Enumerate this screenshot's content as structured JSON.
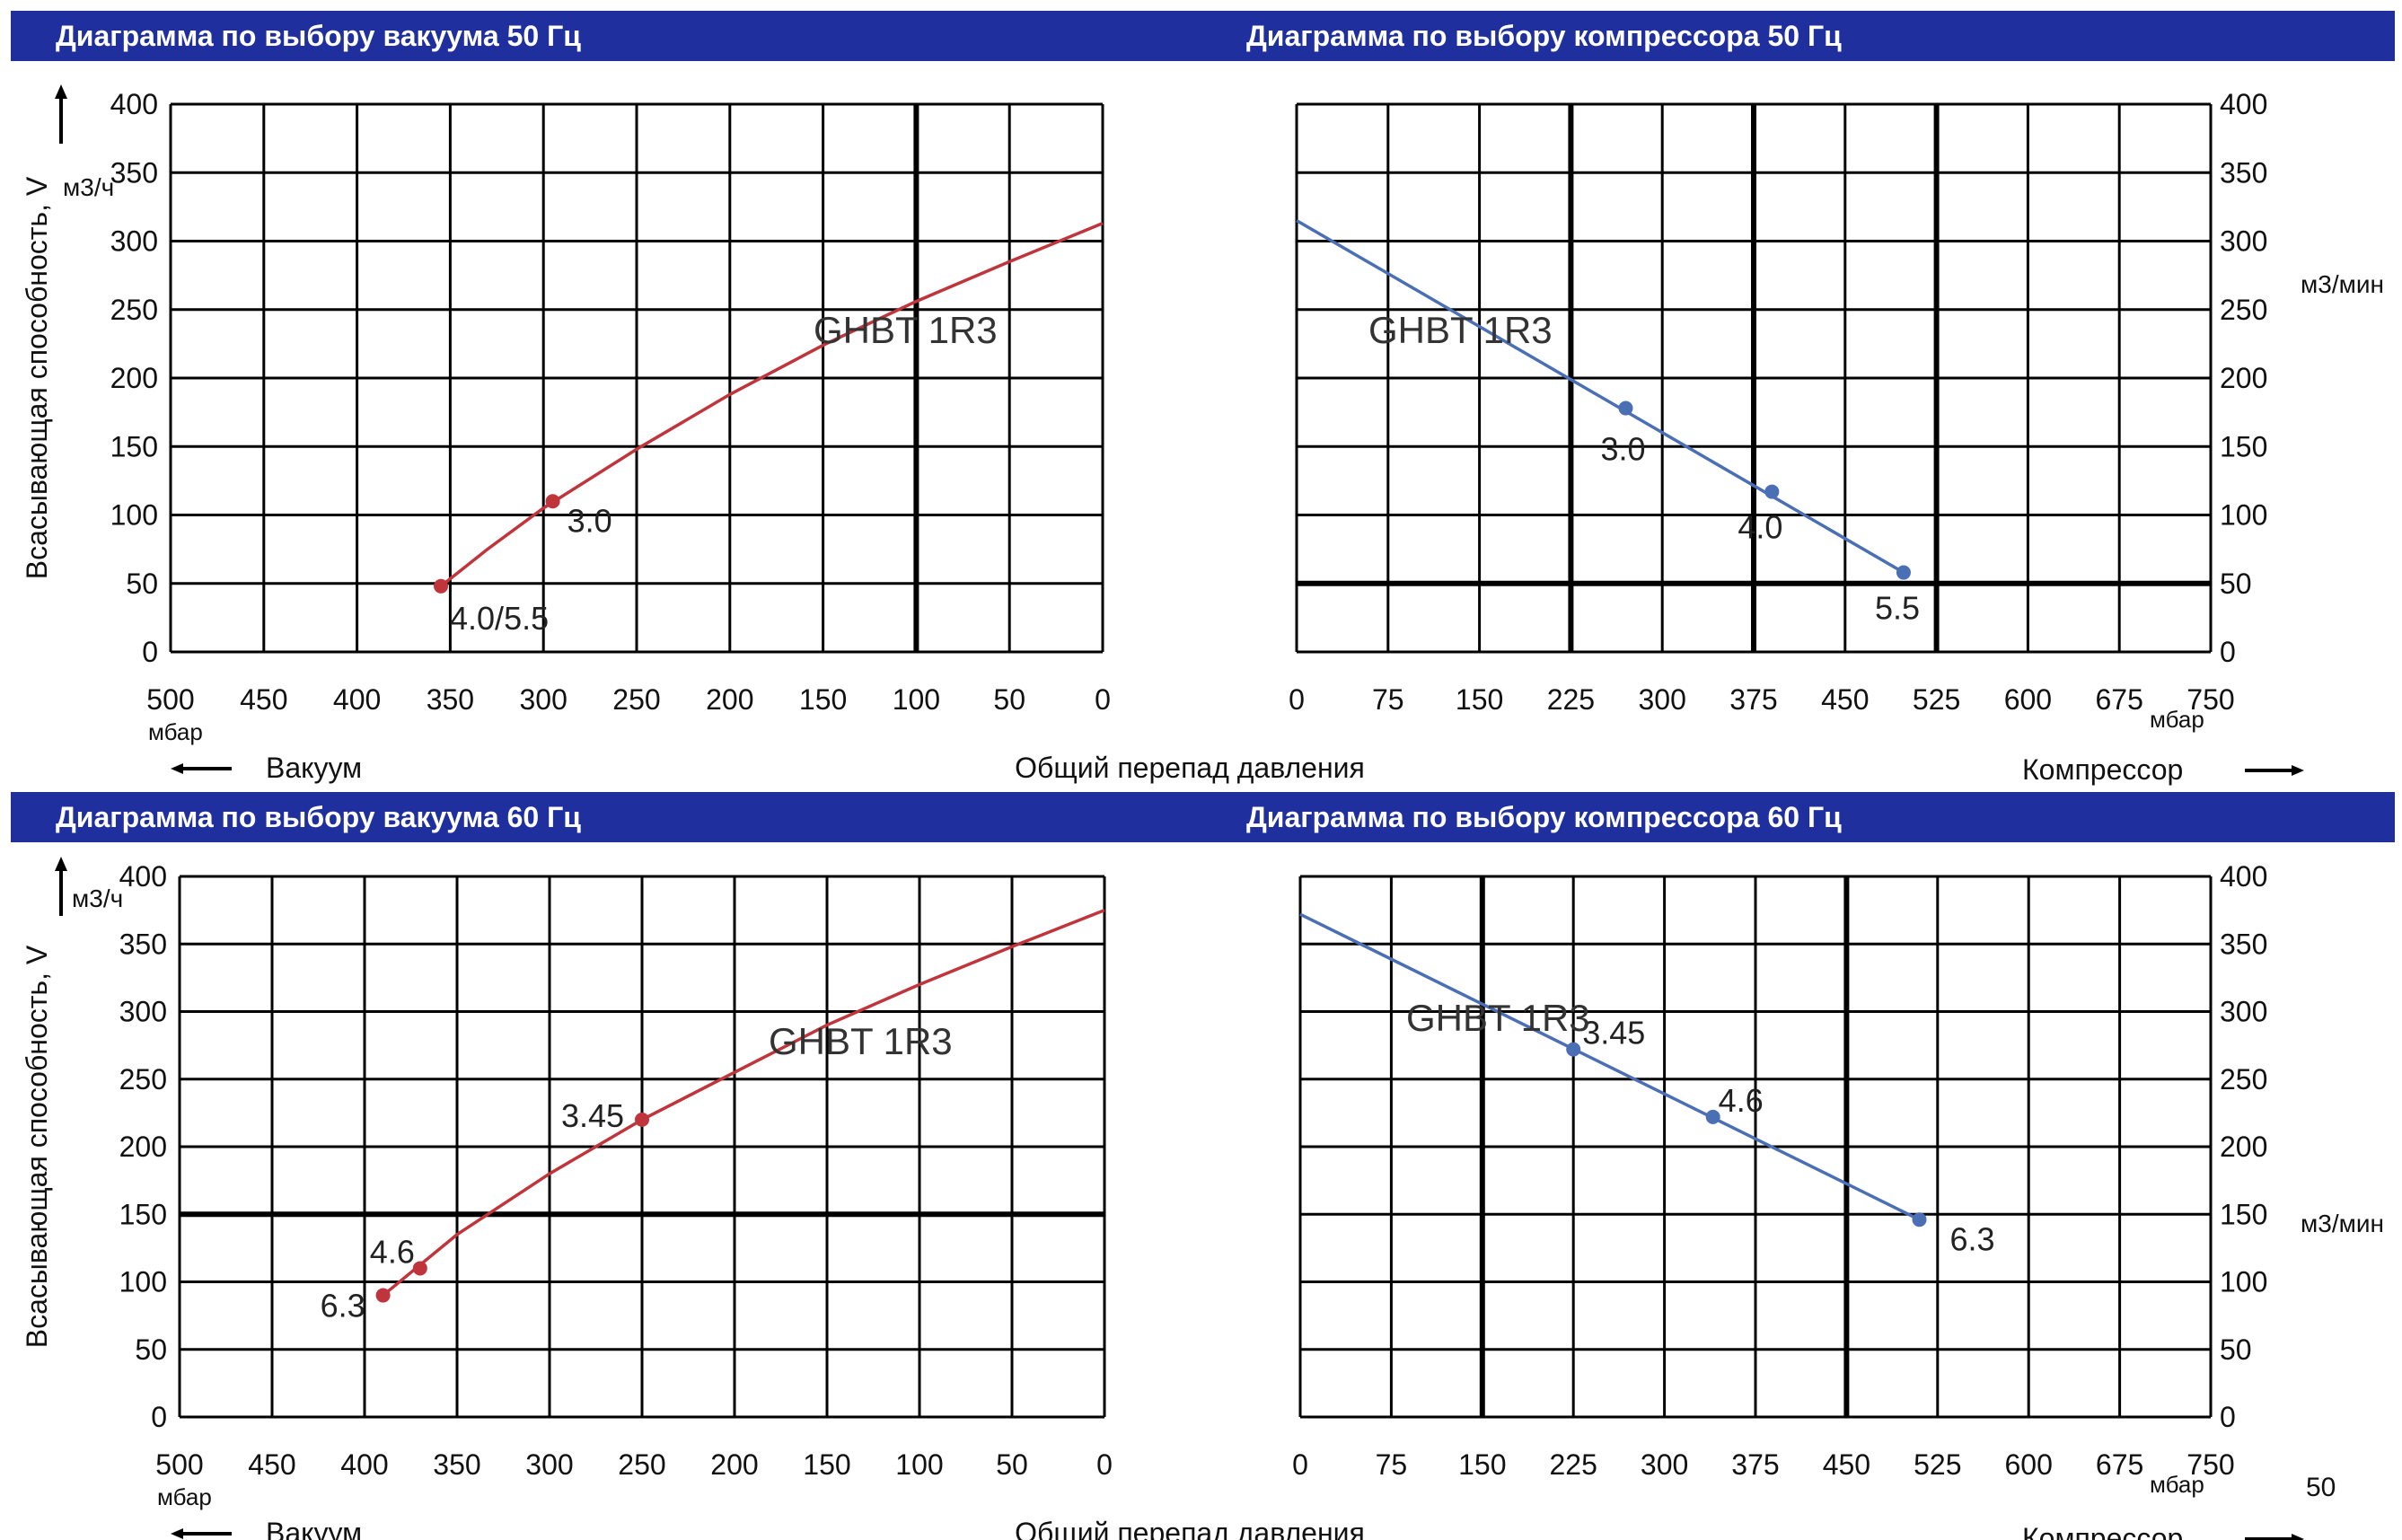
{
  "colors": {
    "band": "#1f2f9e",
    "band_text": "#ffffff",
    "vacuum_curve": "#c0353b",
    "compressor_curve": "#4a6fb5",
    "grid": "#000000"
  },
  "bands": [
    {
      "left_title": "Диаграмма по выбору вакуума 50 Гц",
      "right_title": "Диаграмма по выбору компрессора 50 Гц"
    },
    {
      "left_title": "Диаграмма по выбору вакуума 60 Гц",
      "right_title": "Диаграмма по выбору компрессора 60 Гц"
    }
  ],
  "chart_data": [
    {
      "type": "line",
      "title": "Диаграмма по выбору вакуума 50 Гц",
      "ylabel": "Всасывающая способность, V",
      "yunit": "м3/ч",
      "xunit": "мбар",
      "xlim": [
        500,
        0
      ],
      "ylim": [
        0,
        400
      ],
      "x_ticks": [
        500,
        450,
        400,
        350,
        300,
        250,
        200,
        150,
        100,
        50,
        0
      ],
      "y_ticks": [
        0,
        50,
        100,
        150,
        200,
        250,
        300,
        350,
        400
      ],
      "series": [
        {
          "name": "GHBT 1R3",
          "x": [
            355,
            330,
            300,
            250,
            200,
            150,
            100,
            50,
            0
          ],
          "y": [
            48,
            75,
            105,
            148,
            188,
            224,
            256,
            285,
            313
          ]
        }
      ],
      "markers": [
        {
          "x": 355,
          "y": 48,
          "label": "4.0/5.5"
        },
        {
          "x": 295,
          "y": 110,
          "label": "3.0"
        }
      ],
      "bottom_label": "Вакуум"
    },
    {
      "type": "line",
      "title": "Диаграмма по выбору компрессора 50 Гц",
      "yunit": "м3/мин",
      "xunit": "мбар",
      "xlim": [
        0,
        750
      ],
      "ylim": [
        0,
        400
      ],
      "x_ticks": [
        0,
        75,
        150,
        225,
        300,
        375,
        450,
        525,
        600,
        675,
        750
      ],
      "y_ticks": [
        0,
        50,
        100,
        150,
        200,
        250,
        300,
        350,
        400
      ],
      "series": [
        {
          "name": "GHBT 1R3",
          "x": [
            0,
            498
          ],
          "y": [
            315,
            58
          ]
        }
      ],
      "markers": [
        {
          "x": 270,
          "y": 178,
          "label": "3.0"
        },
        {
          "x": 390,
          "y": 117,
          "label": "4.0"
        },
        {
          "x": 498,
          "y": 58,
          "label": "5.5"
        }
      ],
      "bottom_label": "Компрессор",
      "center_label": "Общий перепад давления"
    },
    {
      "type": "line",
      "title": "Диаграмма по выбору вакуума 60 Гц",
      "ylabel": "Всасывающая способность, V",
      "yunit": "м3/ч",
      "xunit": "мбар",
      "xlim": [
        500,
        0
      ],
      "ylim": [
        0,
        400
      ],
      "x_ticks": [
        500,
        450,
        400,
        350,
        300,
        250,
        200,
        150,
        100,
        50,
        0
      ],
      "y_ticks": [
        0,
        50,
        100,
        150,
        200,
        250,
        300,
        350,
        400
      ],
      "series": [
        {
          "name": "GHBT 1R3",
          "x": [
            390,
            350,
            300,
            250,
            200,
            150,
            100,
            50,
            0
          ],
          "y": [
            90,
            135,
            180,
            220,
            255,
            290,
            320,
            348,
            375
          ]
        }
      ],
      "markers": [
        {
          "x": 390,
          "y": 90,
          "label": "6.3"
        },
        {
          "x": 370,
          "y": 110,
          "label": "4.6"
        },
        {
          "x": 250,
          "y": 220,
          "label": "3.45"
        }
      ],
      "bottom_label": "Вакуум"
    },
    {
      "type": "line",
      "title": "Диаграмма по выбору компрессора 60 Гц",
      "yunit": "м3/мин",
      "xunit": "мбар",
      "xlim": [
        0,
        750
      ],
      "ylim": [
        0,
        400
      ],
      "x_ticks": [
        0,
        75,
        150,
        225,
        300,
        375,
        450,
        525,
        600,
        675,
        750
      ],
      "y_ticks": [
        0,
        50,
        100,
        150,
        200,
        250,
        300,
        350,
        400
      ],
      "series": [
        {
          "name": "GHBT 1R3",
          "x": [
            0,
            510
          ],
          "y": [
            372,
            146
          ]
        }
      ],
      "markers": [
        {
          "x": 225,
          "y": 272,
          "label": "3.45"
        },
        {
          "x": 340,
          "y": 222,
          "label": "4.6"
        },
        {
          "x": 510,
          "y": 146,
          "label": "6.3"
        }
      ],
      "bottom_label": "Компрессор",
      "center_label": "Общий перепад давления"
    }
  ],
  "bottom_right_note": "50"
}
